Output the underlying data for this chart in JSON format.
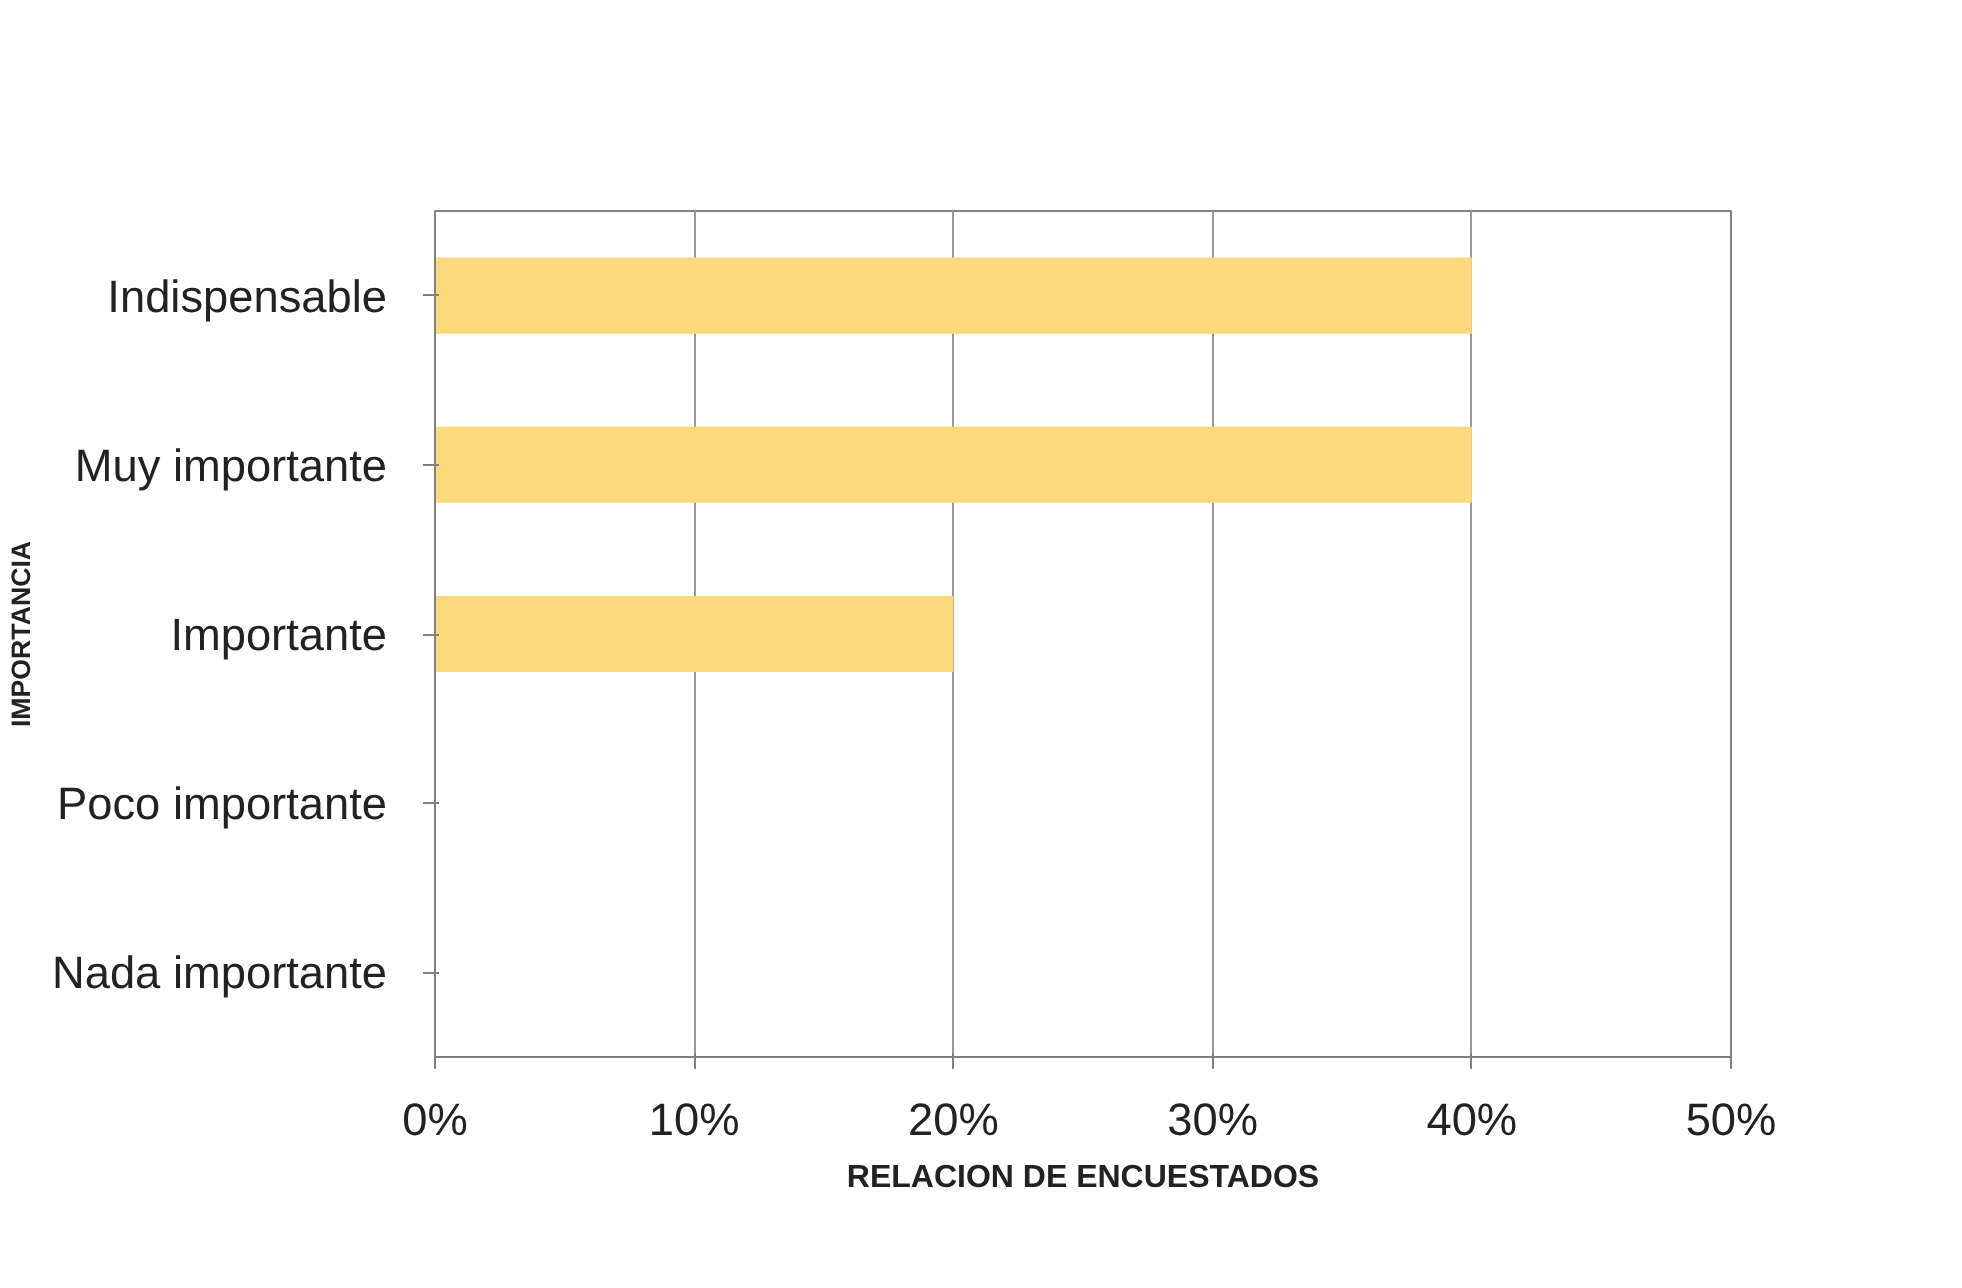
{
  "chart_data": {
    "type": "bar",
    "orientation": "horizontal",
    "xlabel": "RELACION DE ENCUESTADOS",
    "ylabel": "IMPORTANCIA",
    "categories": [
      "Indispensable",
      "Muy importante",
      "Importante",
      "Poco importante",
      "Nada importante"
    ],
    "values": [
      40,
      40,
      20,
      0,
      0
    ],
    "color": "#fdd87c",
    "xlim": [
      0,
      50
    ],
    "xticks": [
      {
        "value": 0,
        "label": "0%"
      },
      {
        "value": 10,
        "label": "10%"
      },
      {
        "value": 20,
        "label": "20%"
      },
      {
        "value": 30,
        "label": "30%"
      },
      {
        "value": 40,
        "label": "40%"
      },
      {
        "value": 50,
        "label": "50%"
      }
    ],
    "grid": "x"
  }
}
